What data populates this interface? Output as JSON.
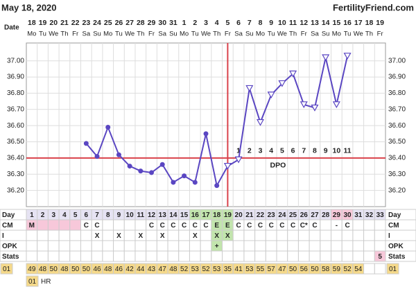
{
  "header": {
    "date": "May 18, 2020",
    "site": "FertilityFriend.com"
  },
  "chart_data": {
    "type": "line",
    "x_label": "Date",
    "categories": [
      "18",
      "19",
      "20",
      "21",
      "22",
      "23",
      "24",
      "25",
      "26",
      "27",
      "28",
      "29",
      "30",
      "31",
      "1",
      "2",
      "3",
      "4",
      "5",
      "6",
      "7",
      "8",
      "9",
      "10",
      "11",
      "12",
      "13",
      "14",
      "15",
      "16",
      "17",
      "18",
      "19"
    ],
    "weekdays": [
      "Mo",
      "Tu",
      "We",
      "Th",
      "Fr",
      "Sa",
      "Su",
      "Mo",
      "Tu",
      "We",
      "Th",
      "Fr",
      "Sa",
      "Su",
      "Mo",
      "Tu",
      "We",
      "Th",
      "Fr",
      "Sa",
      "Su",
      "Mo",
      "Tu",
      "We",
      "Th",
      "Fr",
      "Sa",
      "Su",
      "Mo",
      "Tu",
      "We",
      "Th",
      "Fr"
    ],
    "values": [
      null,
      null,
      null,
      null,
      null,
      36.49,
      36.41,
      36.59,
      36.42,
      36.35,
      36.32,
      36.31,
      36.36,
      36.25,
      36.29,
      36.25,
      36.55,
      36.23,
      36.35,
      36.39,
      36.83,
      36.62,
      36.79,
      36.86,
      36.92,
      36.73,
      36.71,
      37.02,
      36.73,
      37.03,
      null,
      null,
      null
    ],
    "color": "#5a46c2",
    "ylim": [
      36.1,
      37.11
    ],
    "yticks": [
      {
        "value": 36.2,
        "label": "36.20"
      },
      {
        "value": 36.3,
        "label": "36.30"
      },
      {
        "value": 36.4,
        "label": "36.40"
      },
      {
        "value": 36.5,
        "label": "36.50"
      },
      {
        "value": 36.6,
        "label": "36.60"
      },
      {
        "value": 36.7,
        "label": "36.70"
      },
      {
        "value": 36.8,
        "label": "36.80"
      },
      {
        "value": 36.9,
        "label": "36.90"
      },
      {
        "value": 37.0,
        "label": "37.00"
      }
    ],
    "grid": true,
    "coverline": 36.4,
    "coverline_color": "#d9414a",
    "vline_day": 19,
    "dpo_labels": [
      "1",
      "2",
      "3",
      "4",
      "5",
      "6",
      "7",
      "8",
      "9",
      "10",
      "11"
    ],
    "dpo_text": "DPO"
  },
  "table": {
    "rows": [
      {
        "label": "Day",
        "cells": [
          1,
          2,
          3,
          4,
          5,
          6,
          7,
          8,
          9,
          10,
          11,
          12,
          13,
          14,
          15,
          16,
          17,
          18,
          19,
          20,
          21,
          22,
          23,
          24,
          25,
          26,
          27,
          28,
          29,
          30,
          31,
          32,
          33
        ],
        "colors": [
          "#e6e3f3",
          "#e6e3f3",
          "#e6e3f3",
          "#e6e3f3",
          "#e6e3f3",
          "#e6e3f3",
          "#e6e3f3",
          "#e6e3f3",
          "#e6e3f3",
          "#e6e3f3",
          "#e6e3f3",
          "#e6e3f3",
          "#e6e3f3",
          "#e6e3f3",
          "#e6e3f3",
          "#c2e5ad",
          "#c2e5ad",
          "#c2e5ad",
          "#c2e5ad",
          "#e6e3f3",
          "#e6e3f3",
          "#e6e3f3",
          "#e6e3f3",
          "#e6e3f3",
          "#e6e3f3",
          "#e6e3f3",
          "#e6e3f3",
          "#e6e3f3",
          "#f7c8da",
          "#f7c8da",
          "#e6e3f3",
          "#e6e3f3",
          "#e6e3f3"
        ]
      },
      {
        "label": "CM",
        "cells": [
          "M",
          null,
          null,
          null,
          null,
          "C",
          "C",
          null,
          null,
          null,
          null,
          "C",
          "C",
          "C",
          "C",
          "C",
          "C",
          "E",
          "E",
          "C",
          "C",
          "C",
          "C",
          "C",
          "C",
          "C*",
          "C",
          null,
          "-",
          "C",
          null,
          null,
          null
        ],
        "colors": [
          "#f7c8da",
          "#f7c8da",
          "#f7c8da",
          "#f7c8da",
          "#f7c8da",
          null,
          null,
          null,
          null,
          null,
          null,
          null,
          null,
          null,
          null,
          null,
          null,
          "#c2e5ad",
          "#c2e5ad",
          null,
          null,
          null,
          null,
          null,
          null,
          null,
          null,
          null,
          null,
          null,
          null,
          null,
          null
        ]
      },
      {
        "label": "I",
        "cells": [
          null,
          null,
          null,
          null,
          null,
          null,
          "X",
          null,
          "X",
          null,
          "X",
          null,
          "X",
          null,
          null,
          "X",
          null,
          "X",
          "X",
          null,
          null,
          null,
          null,
          null,
          null,
          null,
          null,
          null,
          null,
          null,
          null,
          null,
          null
        ],
        "colors": [
          null,
          null,
          null,
          null,
          null,
          null,
          null,
          null,
          null,
          null,
          null,
          null,
          null,
          null,
          null,
          null,
          null,
          "#c2e5ad",
          "#c2e5ad",
          null,
          null,
          null,
          null,
          null,
          null,
          null,
          null,
          null,
          null,
          null,
          null,
          null,
          null
        ]
      },
      {
        "label": "OPK",
        "cells": [
          null,
          null,
          null,
          null,
          null,
          null,
          null,
          null,
          null,
          null,
          null,
          null,
          null,
          null,
          null,
          null,
          null,
          "+",
          null,
          null,
          null,
          null,
          null,
          null,
          null,
          null,
          null,
          null,
          null,
          null,
          null,
          null,
          null
        ],
        "colors": [
          null,
          null,
          null,
          null,
          null,
          null,
          null,
          null,
          null,
          null,
          null,
          null,
          null,
          null,
          null,
          null,
          null,
          "#c2e5ad",
          null,
          null,
          null,
          null,
          null,
          null,
          null,
          null,
          null,
          null,
          null,
          null,
          null,
          null,
          null
        ]
      },
      {
        "label": "Stats",
        "cells": [
          null,
          null,
          null,
          null,
          null,
          null,
          null,
          null,
          null,
          null,
          null,
          null,
          null,
          null,
          null,
          null,
          null,
          null,
          null,
          null,
          null,
          null,
          null,
          null,
          null,
          null,
          null,
          null,
          null,
          null,
          null,
          null,
          5
        ],
        "colors": [
          null,
          null,
          null,
          null,
          null,
          null,
          null,
          null,
          null,
          null,
          null,
          null,
          null,
          null,
          null,
          null,
          null,
          null,
          null,
          null,
          null,
          null,
          null,
          null,
          null,
          null,
          null,
          null,
          null,
          null,
          null,
          null,
          "#f7c8da"
        ]
      }
    ]
  },
  "times": {
    "label": "01",
    "color": "#f5d98a",
    "cells": [
      49,
      48,
      50,
      48,
      50,
      50,
      46,
      48,
      46,
      42,
      44,
      43,
      47,
      48,
      52,
      53,
      52,
      53,
      35,
      41,
      53,
      55,
      57,
      47,
      50,
      56,
      50,
      58,
      59,
      52,
      54,
      null,
      null
    ]
  },
  "legend": {
    "code": "01",
    "text": "HR"
  }
}
